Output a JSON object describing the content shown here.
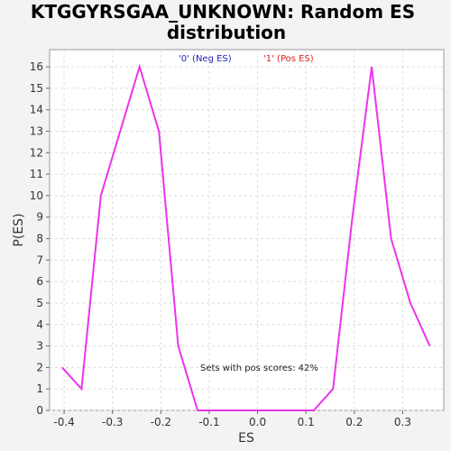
{
  "chart_data": {
    "type": "line",
    "title_line1": "KTGGYRSGAA_UNKNOWN: Random ES",
    "title_line2": "distribution",
    "xlabel": "ES",
    "ylabel": "P(ES)",
    "xlim": [
      -0.43,
      0.385
    ],
    "ylim": [
      0,
      16.8
    ],
    "x_ticks": [
      -0.4,
      -0.3,
      -0.2,
      -0.1,
      0.0,
      0.1,
      0.2,
      0.3
    ],
    "x_tick_labels": [
      "-0.4",
      "-0.3",
      "-0.2",
      "-0.1",
      "0.0",
      "0.1",
      "0.2",
      "0.3"
    ],
    "y_ticks": [
      0,
      1,
      2,
      3,
      4,
      5,
      6,
      7,
      8,
      9,
      10,
      11,
      12,
      13,
      14,
      15,
      16
    ],
    "grid": true,
    "legend": [
      {
        "label": "'0' (Neg ES)",
        "color": "#2222bb"
      },
      {
        "label": "'1' (Pos ES)",
        "color": "#dd2222"
      }
    ],
    "annotation": "Sets with pos scores: 42%",
    "series": [
      {
        "color": "#ee33ee",
        "points": [
          [
            -0.404,
            2
          ],
          [
            -0.364,
            1
          ],
          [
            -0.324,
            10
          ],
          [
            -0.244,
            16
          ],
          [
            -0.204,
            13
          ],
          [
            -0.164,
            3
          ],
          [
            -0.124,
            0
          ],
          [
            -0.084,
            0
          ],
          [
            -0.044,
            0
          ],
          [
            -0.004,
            0
          ],
          [
            0.036,
            0
          ],
          [
            0.076,
            0
          ],
          [
            0.116,
            0
          ],
          [
            0.156,
            1
          ],
          [
            0.196,
            9
          ],
          [
            0.236,
            16
          ],
          [
            0.276,
            8
          ],
          [
            0.316,
            5
          ],
          [
            0.356,
            3
          ]
        ]
      }
    ]
  }
}
